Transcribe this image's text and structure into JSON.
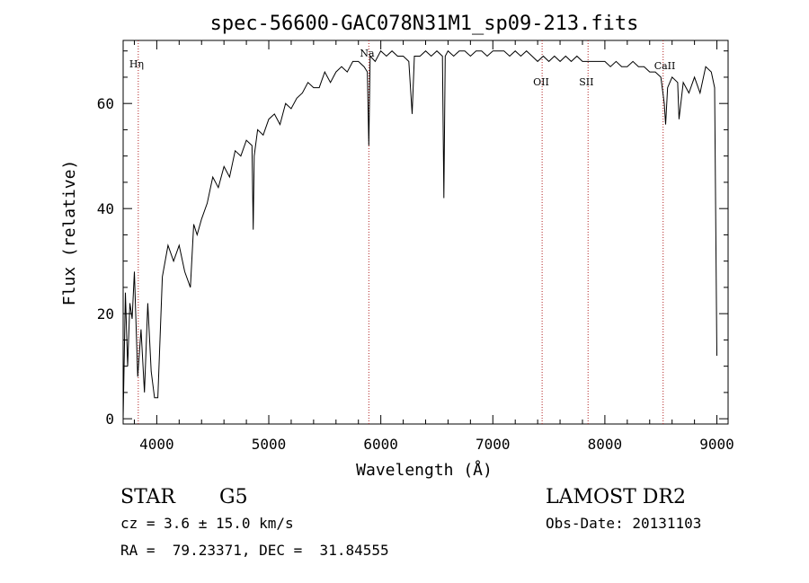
{
  "chart_data": {
    "type": "line",
    "title": "spec-56600-GAC078N31M1_sp09-213.fits",
    "xlabel": "Wavelength (Å)",
    "ylabel": "Flux (relative)",
    "xlim": [
      3700,
      9100
    ],
    "ylim": [
      -1,
      72
    ],
    "x_ticks": [
      4000,
      5000,
      6000,
      7000,
      8000,
      9000
    ],
    "y_ticks": [
      0,
      20,
      40,
      60
    ],
    "line_color": "#000000",
    "marker_color": "#b22222",
    "spectral_lines": [
      {
        "label": "Hη",
        "x": 3835
      },
      {
        "label": "Na",
        "x": 5893
      },
      {
        "label": "OII",
        "x": 7440
      },
      {
        "label": "SII",
        "x": 7850
      },
      {
        "label": "CaII",
        "x": 8520
      }
    ],
    "series": [
      {
        "x": [
          3700,
          3720,
          3740,
          3760,
          3780,
          3800,
          3830,
          3860,
          3890,
          3920,
          3950,
          3980,
          4010,
          4050,
          4100,
          4150,
          4200,
          4250,
          4300,
          4330,
          4360,
          4400,
          4450,
          4500,
          4550,
          4600,
          4650,
          4700,
          4750,
          4800,
          4850,
          4861,
          4870,
          4900,
          4950,
          5000,
          5050,
          5100,
          5150,
          5200,
          5250,
          5300,
          5350,
          5400,
          5450,
          5500,
          5550,
          5600,
          5650,
          5700,
          5750,
          5800,
          5850,
          5880,
          5893,
          5905,
          5950,
          6000,
          6050,
          6100,
          6150,
          6200,
          6250,
          6280,
          6300,
          6350,
          6400,
          6450,
          6500,
          6550,
          6563,
          6575,
          6600,
          6650,
          6700,
          6750,
          6800,
          6850,
          6900,
          6950,
          7000,
          7050,
          7100,
          7150,
          7200,
          7250,
          7300,
          7350,
          7400,
          7450,
          7500,
          7550,
          7600,
          7650,
          7700,
          7750,
          7800,
          7850,
          7900,
          7950,
          8000,
          8050,
          8100,
          8150,
          8200,
          8250,
          8300,
          8350,
          8400,
          8450,
          8500,
          8530,
          8542,
          8560,
          8600,
          8650,
          8662,
          8700,
          8750,
          8800,
          8850,
          8900,
          8950,
          8980,
          9000
        ],
        "y": [
          0,
          24,
          10,
          22,
          19,
          28,
          8,
          17,
          5,
          22,
          9,
          4,
          4,
          27,
          33,
          30,
          33,
          28,
          25,
          37,
          35,
          38,
          41,
          46,
          44,
          48,
          46,
          51,
          50,
          53,
          52,
          36,
          50,
          55,
          54,
          57,
          58,
          56,
          60,
          59,
          61,
          62,
          64,
          63,
          63,
          66,
          64,
          66,
          67,
          66,
          68,
          68,
          67,
          66,
          52,
          69,
          68,
          70,
          69,
          70,
          69,
          69,
          68,
          58,
          69,
          69,
          70,
          69,
          70,
          69,
          42,
          69,
          70,
          69,
          70,
          70,
          69,
          70,
          70,
          69,
          70,
          70,
          70,
          69,
          70,
          69,
          70,
          69,
          68,
          69,
          68,
          69,
          68,
          69,
          68,
          69,
          68,
          68,
          68,
          68,
          68,
          67,
          68,
          67,
          67,
          68,
          67,
          67,
          66,
          66,
          65,
          60,
          56,
          63,
          65,
          64,
          57,
          64,
          62,
          65,
          62,
          67,
          66,
          63,
          12
        ]
      }
    ]
  },
  "footer": {
    "object_type": "STAR",
    "subclass": "G5",
    "cz": "cz = 3.6 ± 15.0 km/s",
    "coords": "RA =  79.23371, DEC =  31.84555",
    "survey": "LAMOST DR2",
    "obs_date": "Obs-Date: 20131103"
  }
}
